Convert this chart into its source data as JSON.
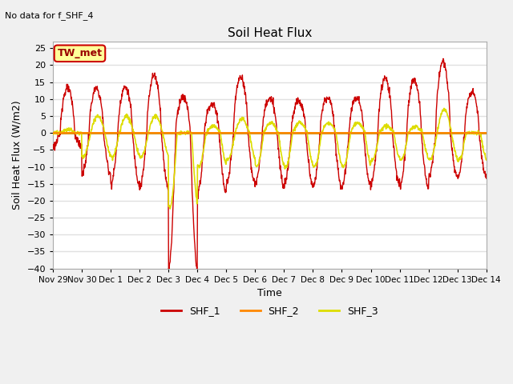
{
  "title": "Soil Heat Flux",
  "ylabel": "Soil Heat Flux (W/m2)",
  "xlabel": "Time",
  "annotation_top_left": "No data for f_SHF_4",
  "legend_box_label": "TW_met",
  "ylim": [
    -40,
    27
  ],
  "yticks": [
    -40,
    -35,
    -30,
    -25,
    -20,
    -15,
    -10,
    -5,
    0,
    5,
    10,
    15,
    20,
    25
  ],
  "xtick_labels": [
    "Nov 29",
    "Nov 30",
    "Dec 1",
    "Dec 2",
    "Dec 3",
    "Dec 4",
    "Dec 5",
    "Dec 6",
    "Dec 7",
    "Dec 8",
    "Dec 9",
    "Dec 10",
    "Dec 11",
    "Dec 12",
    "Dec 13",
    "Dec 14"
  ],
  "colors": {
    "SHF_1": "#cc0000",
    "SHF_2": "#ff8800",
    "SHF_3": "#dddd00",
    "zero_line": "#cc8800",
    "background": "#e8e8e8",
    "plot_area_bg": "#ffffff",
    "legend_box_bg": "#ffff99",
    "legend_box_border": "#cc0000"
  },
  "legend_entries": [
    "SHF_1",
    "SHF_2",
    "SHF_3"
  ],
  "shf1_day_peaks": [
    13,
    13,
    13.5,
    17,
    10.5,
    8.5,
    16.5,
    10,
    9.5,
    10.5,
    10.5,
    16,
    15.5,
    21,
    12
  ],
  "shf1_day_troughs": [
    4,
    12,
    15,
    16,
    40,
    18,
    15,
    15,
    15,
    16,
    15.5,
    15,
    16,
    13,
    13
  ],
  "shf3_day_amps_pos": [
    1,
    5,
    5,
    5,
    0,
    2,
    4,
    3,
    3,
    3,
    3,
    2,
    2,
    7,
    0
  ],
  "shf3_day_amps_neg": [
    0,
    7,
    7,
    7,
    22,
    10,
    8,
    10,
    10,
    10,
    10,
    8,
    8,
    8,
    8
  ]
}
